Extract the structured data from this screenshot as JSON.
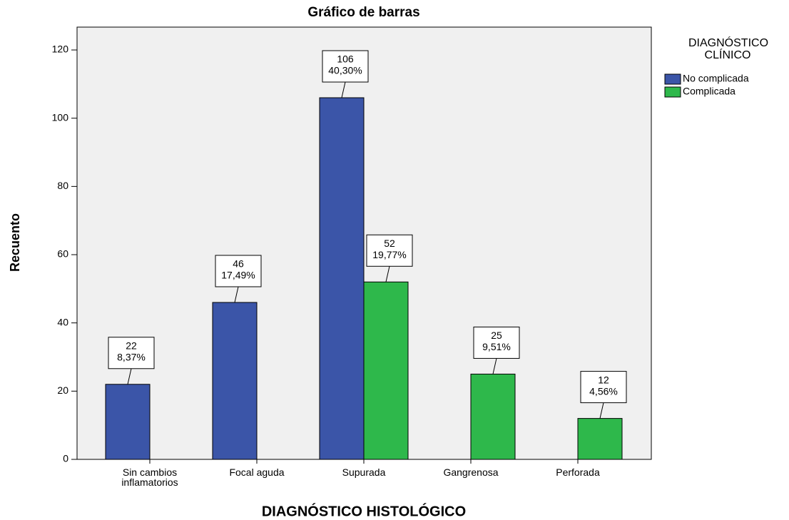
{
  "chart_data": {
    "type": "bar",
    "title": "Gráfico de barras",
    "x_label": "DIAGNÓSTICO HISTOLÓGICO",
    "y_label": "Recuento",
    "legend_title": "DIAGNÓSTICO CLÍNICO",
    "categories": [
      "Sin cambios inflamatorios",
      "Focal aguda",
      "Supurada",
      "Gangrenosa",
      "Perforada"
    ],
    "series": [
      {
        "name": "No complicada",
        "color": "#3b55a8",
        "values": [
          22,
          46,
          106,
          null,
          null
        ],
        "percentage_labels": [
          "8,37%",
          "17,49%",
          "40,30%",
          null,
          null
        ]
      },
      {
        "name": "Complicada",
        "color": "#2eb84b",
        "values": [
          null,
          null,
          52,
          25,
          12
        ],
        "percentage_labels": [
          null,
          null,
          "19,77%",
          "9,51%",
          "4,56%"
        ]
      }
    ],
    "ylim": [
      0,
      126.7
    ],
    "yticks": [
      0,
      20,
      40,
      60,
      80,
      100,
      120
    ],
    "grid": false
  }
}
